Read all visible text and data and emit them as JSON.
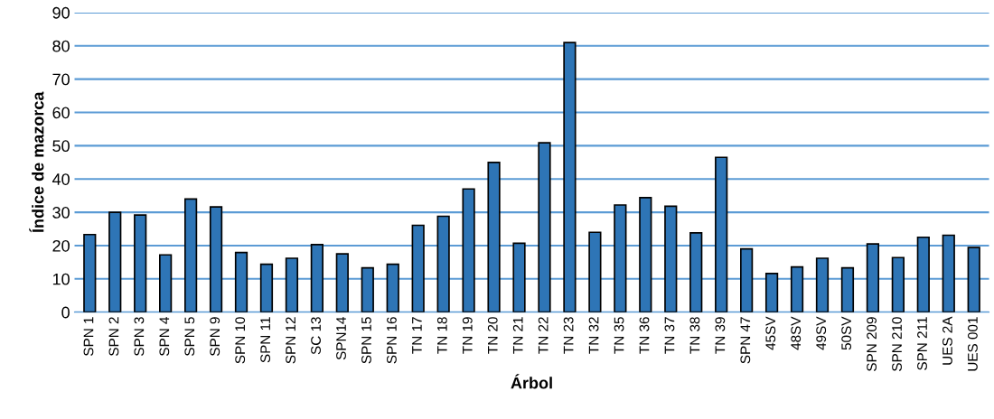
{
  "chart_data": {
    "type": "bar",
    "xlabel": "Árbol",
    "ylabel": "Índice de mazorca",
    "categories": [
      "SPN 1",
      "SPN 2",
      "SPN 3",
      "SPN 4",
      "SPN 5",
      "SPN 9",
      "SPN 10",
      "SPN 11",
      "SPN 12",
      "SC 13",
      "SPN14",
      "SPN 15",
      "SPN 16",
      "TN 17",
      "TN 18",
      "TN 19",
      "TN 20",
      "TN 21",
      "TN 22",
      "TN 23",
      "TN 32",
      "TN 35",
      "TN 36",
      "TN 37",
      "TN 38",
      "TN 39",
      "SPN 47",
      "45SV",
      "48SV",
      "49SV",
      "50SV",
      "SPN 209",
      "SPN 210",
      "SPN 211",
      "UES 2A",
      "UES 001"
    ],
    "values": [
      23.3,
      30.0,
      29.2,
      17.2,
      34.0,
      31.6,
      17.9,
      14.4,
      16.2,
      20.3,
      17.5,
      13.3,
      14.4,
      26.1,
      28.8,
      37.0,
      45.0,
      20.7,
      50.9,
      81.0,
      24.0,
      32.2,
      34.4,
      31.8,
      23.8,
      46.5,
      19.0,
      11.6,
      13.6,
      16.2,
      13.3,
      20.5,
      16.4,
      22.5,
      23.1,
      19.4
    ],
    "color": "#2e75b6",
    "ylim": [
      0,
      90
    ],
    "yticks": [
      0,
      10,
      20,
      30,
      40,
      50,
      60,
      70,
      80,
      90
    ],
    "grid": "y"
  }
}
